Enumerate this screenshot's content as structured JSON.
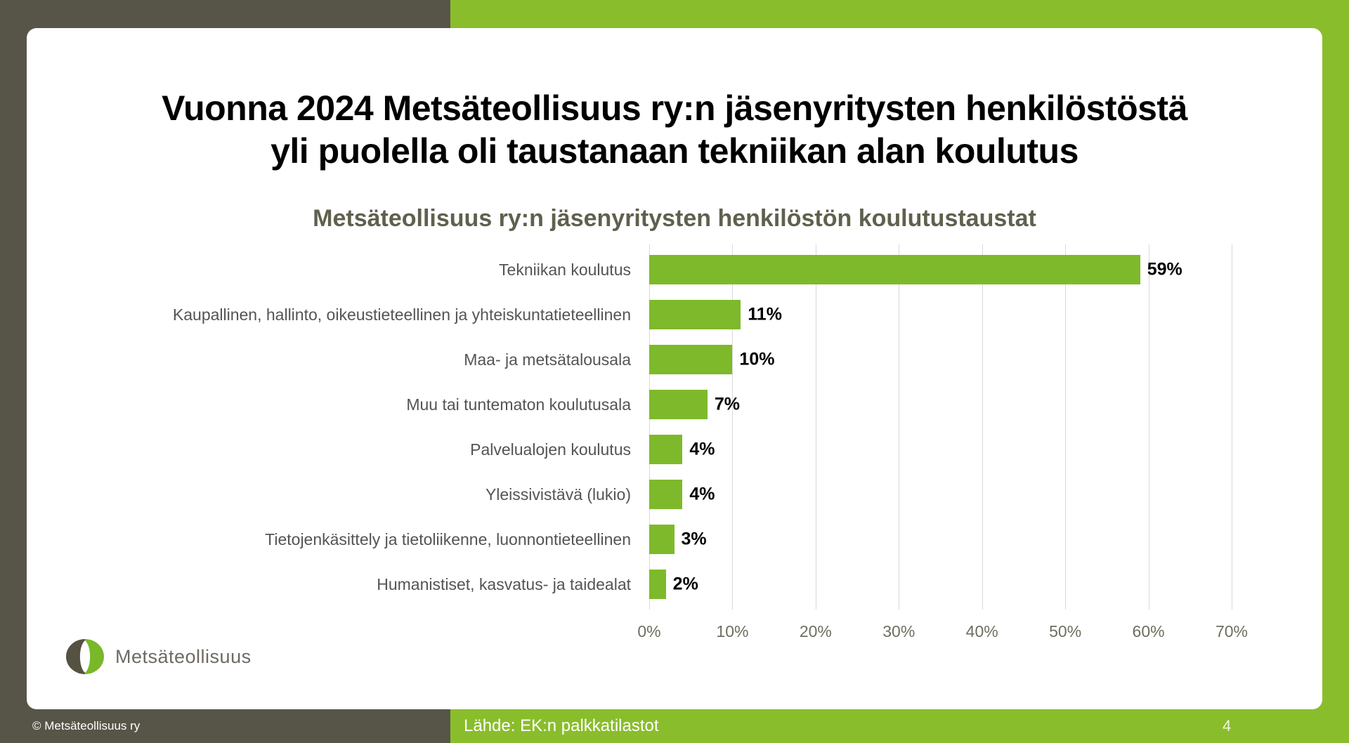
{
  "slide": {
    "title_line1": "Vuonna 2024 Metsäteollisuus ry:n jäsenyritysten henkilöstöstä",
    "title_line2": "yli puolella oli taustanaan tekniikan alan koulutus",
    "page_number": "4"
  },
  "logo": {
    "text": "Metsäteollisuus"
  },
  "footer": {
    "copyright": "© Metsäteollisuus ry",
    "source": "Lähde: EK:n palkkatilastot"
  },
  "chart_data": {
    "type": "bar",
    "orientation": "horizontal",
    "title": "Metsäteollisuus ry:n jäsenyritysten henkilöstön koulutustaustat",
    "categories": [
      "Tekniikan koulutus",
      "Kaupallinen, hallinto, oikeustieteellinen ja yhteiskuntatieteellinen",
      "Maa- ja metsätalousala",
      "Muu tai tuntematon koulutusala",
      "Palvelualojen koulutus",
      "Yleissivistävä (lukio)",
      "Tietojenkäsittely ja tietoliikenne, luonnontieteellinen",
      "Humanistiset, kasvatus- ja taidealat"
    ],
    "values": [
      59,
      11,
      10,
      7,
      4,
      4,
      3,
      2
    ],
    "value_labels": [
      "59%",
      "11%",
      "10%",
      "7%",
      "4%",
      "4%",
      "3%",
      "2%"
    ],
    "x_ticks": [
      "0%",
      "10%",
      "20%",
      "30%",
      "40%",
      "50%",
      "60%",
      "70%"
    ],
    "x_tick_values": [
      0,
      10,
      20,
      30,
      40,
      50,
      60,
      70
    ],
    "xlim": [
      0,
      70
    ],
    "grid": true,
    "legend": false
  },
  "colors": {
    "bg_left": "#575548",
    "bg_right": "#8ABD2C",
    "bar": "#7EB92B",
    "gridline": "#D9D9D9",
    "category_label": "#545454",
    "tick_label": "#6E6E60",
    "chart_title": "#60604E",
    "slide_title": "#000000",
    "logo_text": "#6E6A63",
    "footer_text": "#FFFFFF",
    "logo_dark": "#565243",
    "logo_green": "#79B829"
  }
}
